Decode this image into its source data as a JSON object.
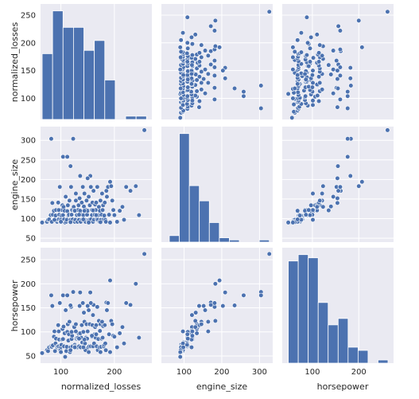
{
  "chart_data": {
    "type": "scatter",
    "variables": [
      "normalized_losses",
      "engine_size",
      "horsepower"
    ],
    "ranges": {
      "normalized_losses": [
        62,
        270
      ],
      "engine_size": [
        40,
        335
      ],
      "horsepower": [
        35,
        275
      ]
    },
    "ticks": {
      "normalized_losses": [
        100,
        150,
        200,
        250
      ],
      "engine_size": [
        50,
        100,
        150,
        200,
        250,
        300
      ],
      "horsepower": [
        50,
        100,
        150,
        200,
        250
      ]
    },
    "x_ticks": {
      "normalized_losses": [
        100,
        200
      ],
      "engine_size": [
        100,
        200,
        300
      ],
      "horsepower": [
        100,
        200
      ]
    },
    "histograms": {
      "normalized_losses": {
        "edges": [
          65,
          84.5,
          104,
          123.5,
          143,
          162.5,
          182,
          201.5,
          221,
          240.5,
          260
        ],
        "counts": [
          20,
          33,
          28,
          28,
          21,
          24,
          12,
          0,
          1,
          1
        ]
      },
      "engine_size": {
        "edges": [
          61,
          87.5,
          114,
          140.5,
          167,
          193.5,
          220,
          246.5,
          273,
          299.5,
          326
        ],
        "counts": [
          3,
          50,
          26,
          19,
          9,
          2,
          1,
          0,
          0,
          1
        ]
      },
      "horsepower": {
        "edges": [
          48,
          69.5,
          91,
          112.5,
          134,
          155.5,
          177,
          198.5,
          220,
          241.5,
          263
        ],
        "counts": [
          32,
          34,
          33,
          19,
          12,
          14,
          5,
          4,
          0,
          1
        ]
      }
    },
    "points": [
      [
        65,
        90,
        56
      ],
      [
        74,
        92,
        62
      ],
      [
        76,
        97,
        60
      ],
      [
        78,
        98,
        68
      ],
      [
        81,
        109,
        70
      ],
      [
        83,
        92,
        69
      ],
      [
        85,
        110,
        72
      ],
      [
        87,
        120,
        90
      ],
      [
        89,
        97,
        60
      ],
      [
        90,
        108,
        76
      ],
      [
        91,
        122,
        86
      ],
      [
        93,
        92,
        68
      ],
      [
        94,
        97,
        70
      ],
      [
        95,
        141,
        114
      ],
      [
        96,
        98,
        70
      ],
      [
        97,
        110,
        84
      ],
      [
        98,
        181,
        160
      ],
      [
        99,
        92,
        62
      ],
      [
        100,
        97,
        69
      ],
      [
        101,
        108,
        73
      ],
      [
        102,
        122,
        84
      ],
      [
        103,
        134,
        106
      ],
      [
        104,
        109,
        85
      ],
      [
        105,
        130,
        111
      ],
      [
        106,
        98,
        70
      ],
      [
        107,
        120,
        97
      ],
      [
        108,
        90,
        48
      ],
      [
        109,
        156,
        145
      ],
      [
        110,
        92,
        60
      ],
      [
        111,
        97,
        69
      ],
      [
        112,
        119,
        100
      ],
      [
        113,
        134,
        116
      ],
      [
        114,
        108,
        82
      ],
      [
        115,
        110,
        95
      ],
      [
        116,
        146,
        121
      ],
      [
        117,
        92,
        58
      ],
      [
        118,
        97,
        68
      ],
      [
        119,
        181,
        152
      ],
      [
        120,
        109,
        85
      ],
      [
        121,
        122,
        92
      ],
      [
        122,
        98,
        70
      ],
      [
        123,
        304,
        183
      ],
      [
        124,
        130,
        111
      ],
      [
        125,
        121,
        110
      ],
      [
        126,
        92,
        73
      ],
      [
        127,
        97,
        70
      ],
      [
        128,
        146,
        116
      ],
      [
        129,
        110,
        86
      ],
      [
        130,
        109,
        88
      ],
      [
        131,
        92,
        68
      ],
      [
        132,
        122,
        88
      ],
      [
        133,
        134,
        97
      ],
      [
        134,
        97,
        70
      ],
      [
        135,
        152,
        154
      ],
      [
        136,
        120,
        97
      ],
      [
        137,
        92,
        68
      ],
      [
        138,
        110,
        88
      ],
      [
        139,
        141,
        114
      ],
      [
        140,
        98,
        78
      ],
      [
        141,
        181,
        160
      ],
      [
        142,
        109,
        100
      ],
      [
        143,
        131,
        140
      ],
      [
        144,
        164,
        121
      ],
      [
        145,
        97,
        76
      ],
      [
        146,
        92,
        62
      ],
      [
        147,
        122,
        88
      ],
      [
        148,
        146,
        116
      ],
      [
        149,
        110,
        86
      ],
      [
        150,
        120,
        101
      ],
      [
        151,
        92,
        68
      ],
      [
        152,
        156,
        145
      ],
      [
        153,
        97,
        70
      ],
      [
        154,
        134,
        116
      ],
      [
        155,
        209,
        182
      ],
      [
        156,
        98,
        70
      ],
      [
        157,
        122,
        92
      ],
      [
        158,
        109,
        90
      ],
      [
        159,
        141,
        114
      ],
      [
        160,
        92,
        70
      ],
      [
        161,
        171,
        156
      ],
      [
        162,
        97,
        76
      ],
      [
        163,
        110,
        95
      ],
      [
        164,
        136,
        110
      ],
      [
        165,
        122,
        88
      ],
      [
        166,
        141,
        114
      ],
      [
        167,
        98,
        70
      ],
      [
        168,
        181,
        152
      ],
      [
        169,
        97,
        62
      ],
      [
        170,
        109,
        85
      ],
      [
        171,
        130,
        123
      ],
      [
        172,
        92,
        68
      ],
      [
        173,
        120,
        102
      ],
      [
        174,
        146,
        116
      ],
      [
        175,
        97,
        69
      ],
      [
        176,
        110,
        86
      ],
      [
        177,
        164,
        121
      ],
      [
        178,
        122,
        88
      ],
      [
        179,
        134,
        112
      ],
      [
        180,
        98,
        70
      ],
      [
        181,
        108,
        73
      ],
      [
        182,
        141,
        114
      ],
      [
        183,
        97,
        76
      ],
      [
        184,
        92,
        62
      ],
      [
        185,
        171,
        161
      ],
      [
        186,
        156,
        145
      ],
      [
        188,
        181,
        160
      ],
      [
        190,
        110,
        95
      ],
      [
        192,
        194,
        207
      ],
      [
        194,
        183,
        123
      ],
      [
        196,
        146,
        116
      ],
      [
        198,
        122,
        92
      ],
      [
        200,
        109,
        90
      ],
      [
        205,
        92,
        68
      ],
      [
        210,
        120,
        97
      ],
      [
        215,
        130,
        110
      ],
      [
        218,
        97,
        76
      ],
      [
        222,
        181,
        160
      ],
      [
        230,
        171,
        156
      ],
      [
        240,
        183,
        200
      ],
      [
        246,
        109,
        88
      ],
      [
        256,
        326,
        262
      ],
      [
        88,
        97,
        101
      ],
      [
        96,
        122,
        101
      ],
      [
        104,
        258,
        176
      ],
      [
        112,
        258,
        176
      ],
      [
        120,
        110,
        100
      ],
      [
        128,
        164,
        101
      ],
      [
        136,
        209,
        182
      ],
      [
        144,
        120,
        84
      ],
      [
        150,
        203,
        154
      ],
      [
        158,
        122,
        92
      ],
      [
        166,
        109,
        95
      ],
      [
        174,
        91,
        58
      ],
      [
        100,
        92,
        58
      ],
      [
        118,
        91,
        62
      ],
      [
        126,
        120,
        68
      ],
      [
        134,
        110,
        86
      ],
      [
        142,
        98,
        68
      ],
      [
        160,
        121,
        135
      ],
      [
        82,
        304,
        176
      ],
      [
        84,
        140,
        154
      ],
      [
        118,
        234,
        155
      ],
      [
        192,
        90,
        58
      ],
      [
        156,
        181,
        160
      ],
      [
        152,
        90,
        58
      ]
    ]
  }
}
